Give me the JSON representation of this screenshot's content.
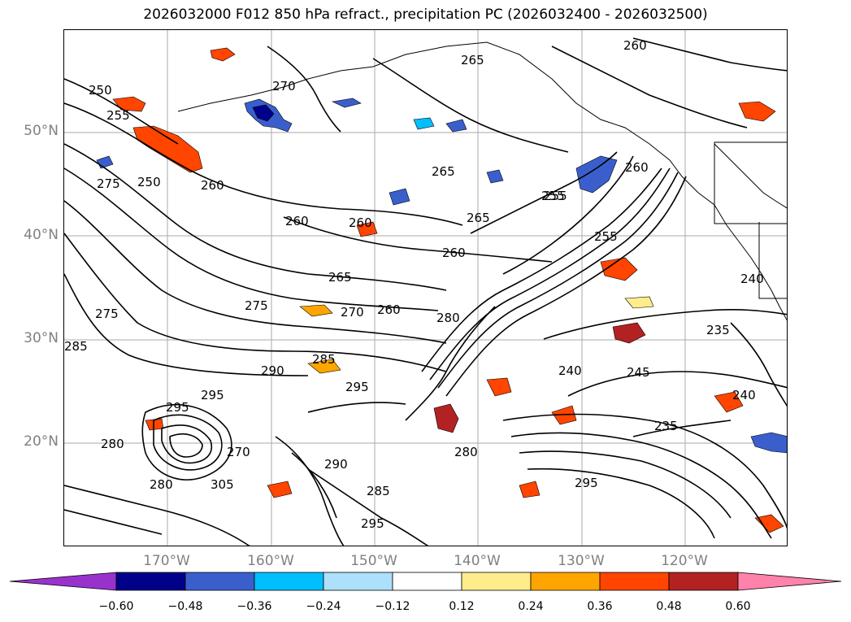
{
  "title": "2026032000 F012 850 hPa refract., precipitation PC (2026032400 - 2026032500)",
  "lat_labels": [
    "50°N",
    "40°N",
    "30°N",
    "20°N"
  ],
  "lon_labels": [
    "170°W",
    "160°W",
    "150°W",
    "140°W",
    "130°W",
    "120°W"
  ],
  "contour_labels": [
    "265",
    "260",
    "250",
    "255",
    "275",
    "250",
    "260",
    "270",
    "265",
    "260",
    "260",
    "265",
    "260",
    "255",
    "265",
    "285",
    "275",
    "275",
    "270",
    "260",
    "280",
    "255",
    "260",
    "290",
    "285",
    "295",
    "280",
    "290",
    "295",
    "305",
    "240",
    "245",
    "235",
    "240",
    "270",
    "295",
    "280",
    "295",
    "285",
    "255",
    "235",
    "240",
    "295",
    "280"
  ],
  "colorbar": {
    "ticks": [
      "−0.60",
      "−0.48",
      "−0.36",
      "−0.24",
      "−0.12",
      "0.12",
      "0.24",
      "0.36",
      "0.48",
      "0.60"
    ],
    "colors": [
      "#9932CC",
      "#00008B",
      "#3A5FCD",
      "#00BFFF",
      "#ADE0FA",
      "#FFFFFF",
      "#FFEC8B",
      "#FFA500",
      "#FF4500",
      "#B22222",
      "#FF82AB"
    ]
  }
}
